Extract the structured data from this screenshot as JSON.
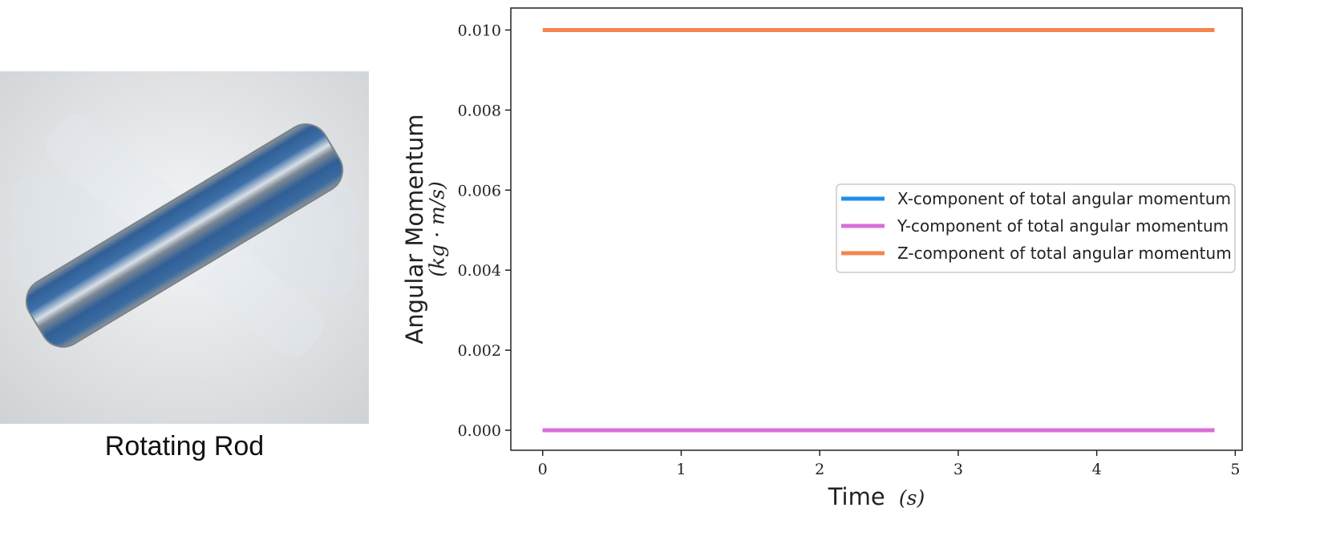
{
  "figure": {
    "render_caption": "Rotating Rod"
  },
  "chart_data": {
    "type": "line",
    "title": "",
    "xlabel_text": "Time",
    "xlabel_unit": "(s)",
    "ylabel_text": "Angular Momentum",
    "ylabel_unit": "(kg · m/s)",
    "xlim": [
      -0.23,
      5.05
    ],
    "ylim": [
      -0.0005,
      0.01055
    ],
    "xticks": [
      0,
      1,
      2,
      3,
      4,
      5
    ],
    "yticks": [
      0.0,
      0.002,
      0.004,
      0.006,
      0.008,
      0.01
    ],
    "ytick_labels": [
      "0.000",
      "0.002",
      "0.004",
      "0.006",
      "0.008",
      "0.010"
    ],
    "legend_position": "center-right",
    "grid": false,
    "series": [
      {
        "name": "X-component of total angular momentum",
        "color": "#1f8fea",
        "x": [
          0,
          4.85
        ],
        "y": [
          0.0,
          0.0
        ]
      },
      {
        "name": "Y-component of total angular momentum",
        "color": "#d86fd8",
        "x": [
          0,
          4.85
        ],
        "y": [
          0.0,
          0.0
        ]
      },
      {
        "name": "Z-component of total angular momentum",
        "color": "#f5844e",
        "x": [
          0,
          4.85
        ],
        "y": [
          0.01,
          0.01
        ]
      }
    ]
  }
}
